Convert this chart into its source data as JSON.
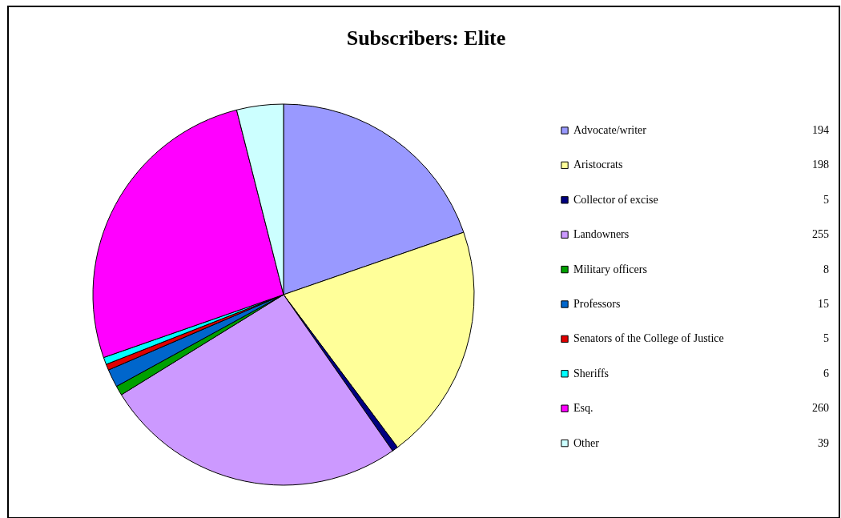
{
  "chart_data": {
    "type": "pie",
    "title": "Subscribers: Elite",
    "categories": [
      "Advocate/writer",
      "Aristocrats",
      "Collector of excise",
      "Landowners",
      "Military officers",
      "Professors",
      "Senators of the College of Justice",
      "Sheriffs",
      "Esq.",
      "Other"
    ],
    "values": [
      194,
      198,
      5,
      255,
      8,
      15,
      5,
      6,
      260,
      39
    ],
    "colors": [
      "#9999ff",
      "#ffff99",
      "#000080",
      "#cc99ff",
      "#00a000",
      "#0066cc",
      "#e00000",
      "#00ffff",
      "#ff00ff",
      "#ccffff"
    ],
    "legend": "right",
    "data_labels": true
  }
}
